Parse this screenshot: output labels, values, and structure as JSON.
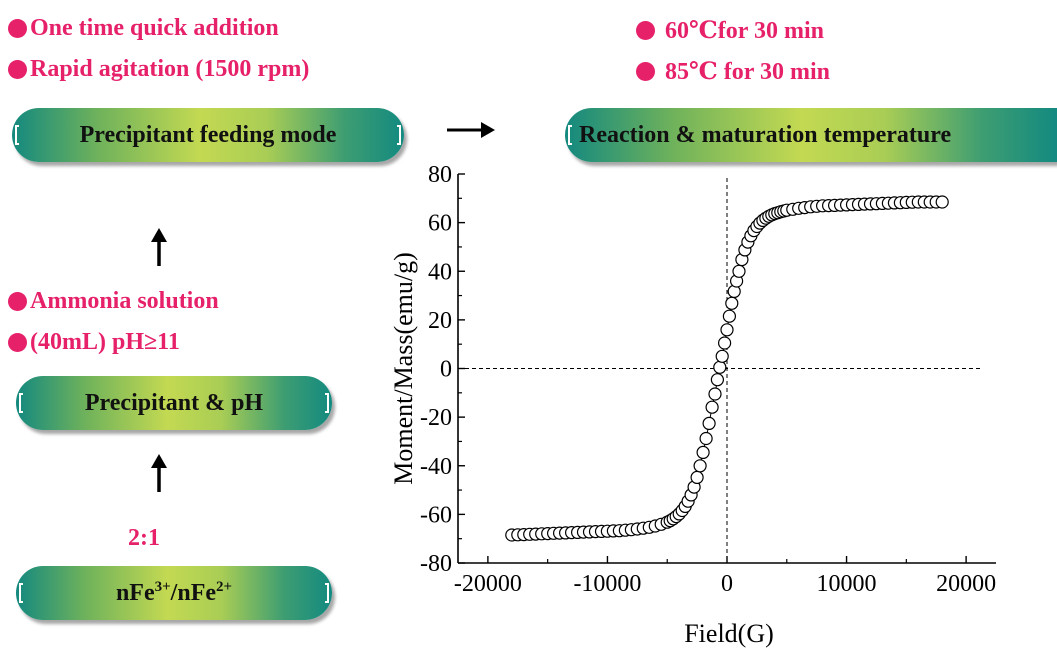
{
  "conditions": {
    "feeding": [
      "One time quick addition",
      "Rapid agitation (1500 rpm)"
    ],
    "temperature": [
      "60℃for 30 min",
      "85℃ for 30 min"
    ],
    "precipitant": [
      "Ammonia solution",
      "(40mL) pH≥11"
    ],
    "ratio": "2:1"
  },
  "steps": {
    "feeding_mode": "Precipitant feeding mode",
    "temperature": "Reaction & maturation temperature",
    "precipitant_ph": "Precipitant & pH",
    "fe_ratio_base": "nFe",
    "fe_ratio_sup1": "3+",
    "fe_ratio_sep": "/nFe",
    "fe_ratio_sup2": "2+"
  },
  "colors": {
    "accent_text": "#e6216a",
    "pill_teal": "#14897f",
    "pill_lime": "#c3d952"
  },
  "chart_data": {
    "type": "scatter",
    "xlabel": "Field(G)",
    "ylabel": "Moment/Mass(emu/g)",
    "xlim": [
      -22500,
      22500
    ],
    "ylim": [
      -80,
      80
    ],
    "xticks": [
      -20000,
      -10000,
      0,
      10000,
      20000
    ],
    "yticks": [
      -80,
      -60,
      -40,
      -20,
      0,
      20,
      40,
      60,
      80
    ],
    "ms": 68.5,
    "marker": "open-circle",
    "dashed_zero_lines": true,
    "x": [
      -18000,
      -17500,
      -17000,
      -16500,
      -16000,
      -15500,
      -15000,
      -14500,
      -14000,
      -13500,
      -13000,
      -12500,
      -12000,
      -11500,
      -11000,
      -10500,
      -10000,
      -9500,
      -9000,
      -8500,
      -8000,
      -7500,
      -7000,
      -6500,
      -6000,
      -5500,
      -5000,
      -4750,
      -4500,
      -4250,
      -4000,
      -3750,
      -3500,
      -3250,
      -3000,
      -2750,
      -2500,
      -2250,
      -2000,
      -1750,
      -1500,
      -1250,
      -1000,
      -800,
      -600,
      -400,
      -200,
      0,
      200,
      400,
      600,
      800,
      1000,
      1250,
      1500,
      1750,
      2000,
      2250,
      2500,
      2750,
      3000,
      3250,
      3500,
      3750,
      4000,
      4250,
      4500,
      4750,
      5000,
      5500,
      6000,
      6500,
      7000,
      7500,
      8000,
      8500,
      9000,
      9500,
      10000,
      10500,
      11000,
      11500,
      12000,
      12500,
      13000,
      13500,
      14000,
      14500,
      15000,
      15500,
      16000,
      16500,
      17000,
      17500,
      18000
    ],
    "y": [
      -68.5,
      -68.4,
      -68.3,
      -68.2,
      -68.1,
      -68.0,
      -67.9,
      -67.8,
      -67.7,
      -67.6,
      -67.5,
      -67.4,
      -67.3,
      -67.2,
      -67.1,
      -67.0,
      -66.9,
      -66.8,
      -66.7,
      -66.5,
      -66.3,
      -66.0,
      -65.7,
      -65.3,
      -64.8,
      -64.1,
      -63.2,
      -62.6,
      -61.8,
      -60.9,
      -59.8,
      -58.4,
      -56.7,
      -54.6,
      -52.0,
      -48.8,
      -44.8,
      -40.0,
      -34.5,
      -28.8,
      -22.6,
      -15.9,
      -10.5,
      -4.6,
      0.5,
      5.0,
      10.5,
      15.9,
      21.5,
      26.8,
      31.7,
      36.0,
      40.0,
      44.8,
      48.8,
      52.0,
      54.6,
      56.7,
      58.4,
      59.8,
      60.9,
      61.8,
      62.6,
      63.2,
      63.7,
      64.1,
      64.5,
      64.8,
      65.1,
      65.5,
      65.9,
      66.2,
      66.5,
      66.7,
      66.9,
      67.0,
      67.1,
      67.2,
      67.3,
      67.4,
      67.5,
      67.6,
      67.7,
      67.8,
      67.9,
      68.0,
      68.1,
      68.2,
      68.3,
      68.4,
      68.5,
      68.5,
      68.5,
      68.5,
      68.5
    ]
  }
}
